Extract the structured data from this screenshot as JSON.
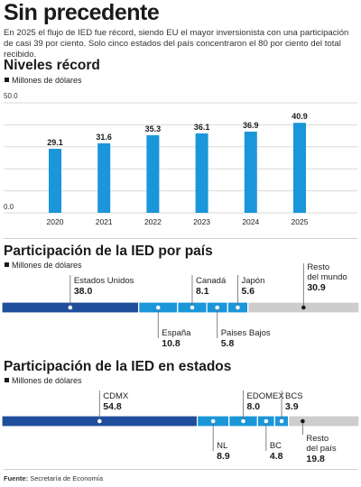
{
  "header": {
    "title": "Sin precedente",
    "intro": "En 2025 el flujo de IED fue récord, siendo EU el mayor inversionista con una participación de casi 39 por ciento. Solo cinco estados del país concentraron el 80 por ciento del total recibido."
  },
  "sections": {
    "records": {
      "title": "Niveles récord",
      "unit": "Millones de dólares"
    },
    "countries": {
      "title": "Participación de la IED por país",
      "unit": "Millones de dólares"
    },
    "states": {
      "title": "Participación de la IED en estados",
      "unit": "Millones de dólares"
    }
  },
  "source": {
    "label": "Fuente:",
    "text": "Secretaría de Economía"
  },
  "colors": {
    "dark_blue": "#1f4e9c",
    "light_blue": "#1a96d9",
    "gray": "#cdcdcd",
    "grid": "#d9d9d9"
  },
  "chart_data": [
    {
      "type": "bar",
      "title": "Niveles récord",
      "ylabel": "Millones de dólares",
      "categories": [
        "2020",
        "2021",
        "2022",
        "2023",
        "2024",
        "2025"
      ],
      "values": [
        29.1,
        31.6,
        35.3,
        36.1,
        36.9,
        40.9
      ],
      "value_labels": [
        "29.1",
        "31.6",
        "35.3",
        "36.1",
        "36.9",
        "40.9"
      ],
      "ylim": [
        0,
        50
      ],
      "yticks": [
        "50.0",
        "0.0"
      ],
      "grid": true
    },
    {
      "type": "bar",
      "orientation": "stacked-horizontal",
      "title": "Participación de la IED por país",
      "ylabel": "Millones de dólares",
      "categories": [
        "Estados Unidos",
        "España",
        "Canadá",
        "Paises Bajos",
        "Japón",
        "Resto del mundo"
      ],
      "values": [
        38.0,
        10.8,
        8.1,
        5.8,
        5.6,
        30.9
      ],
      "value_labels": [
        "38.0",
        "10.8",
        "8.1",
        "5.8",
        "5.6",
        "30.9"
      ]
    },
    {
      "type": "bar",
      "orientation": "stacked-horizontal",
      "title": "Participación de la IED en estados",
      "ylabel": "Millones de dólares",
      "categories": [
        "CDMX",
        "NL",
        "EDOMEX",
        "BC",
        "BCS",
        "Resto del país"
      ],
      "values": [
        54.8,
        8.9,
        8.0,
        4.8,
        3.9,
        19.8
      ],
      "value_labels": [
        "54.8",
        "8.9",
        "8.0",
        "4.8",
        "3.9",
        "19.8"
      ]
    }
  ]
}
